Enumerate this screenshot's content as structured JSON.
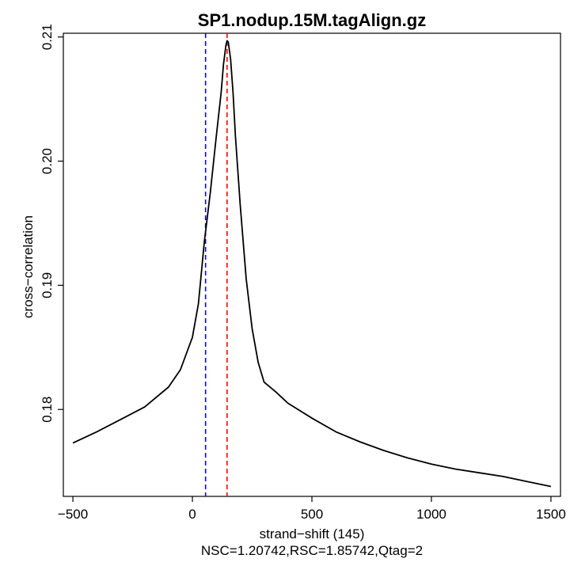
{
  "chart_data": {
    "type": "line",
    "title": "SP1.nodup.15M.tagAlign.gz",
    "xlabel": "strand−shift (145)",
    "ylabel": "cross−correlation",
    "subtitle": "NSC=1.20742,RSC=1.85742,Qtag=2",
    "xlim": [
      -540,
      1540
    ],
    "ylim": [
      0.173,
      0.2103
    ],
    "xticks": [
      -500,
      0,
      500,
      1000,
      1500
    ],
    "xtick_labels": [
      "−500",
      "0",
      "500",
      "1000",
      "1500"
    ],
    "yticks": [
      0.18,
      0.19,
      0.2,
      0.21
    ],
    "ytick_labels": [
      "0.18",
      "0.19",
      "0.20",
      "0.21"
    ],
    "grid": false,
    "series": [
      {
        "color": "#000000",
        "x": [
          -500,
          -400,
          -300,
          -200,
          -100,
          -50,
          0,
          25,
          50,
          75,
          100,
          120,
          130,
          140,
          145,
          150,
          160,
          170,
          180,
          200,
          225,
          250,
          275,
          300,
          350,
          400,
          500,
          600,
          700,
          800,
          900,
          1000,
          1100,
          1200,
          1300,
          1400,
          1500
        ],
        "y": [
          0.1773,
          0.1782,
          0.1792,
          0.1802,
          0.1818,
          0.1832,
          0.1858,
          0.1885,
          0.1935,
          0.1975,
          0.202,
          0.2055,
          0.2078,
          0.2093,
          0.2097,
          0.2096,
          0.2082,
          0.2055,
          0.202,
          0.1965,
          0.1905,
          0.1865,
          0.1838,
          0.1822,
          0.1814,
          0.1805,
          0.1793,
          0.1782,
          0.1774,
          0.1767,
          0.1761,
          0.1756,
          0.1752,
          0.1749,
          0.1746,
          0.1742,
          0.1738
        ]
      }
    ],
    "vlines": [
      {
        "x": 55,
        "color": "#0000ff",
        "style": "dashed"
      },
      {
        "x": 145,
        "color": "#ff0000",
        "style": "dashed"
      }
    ]
  }
}
